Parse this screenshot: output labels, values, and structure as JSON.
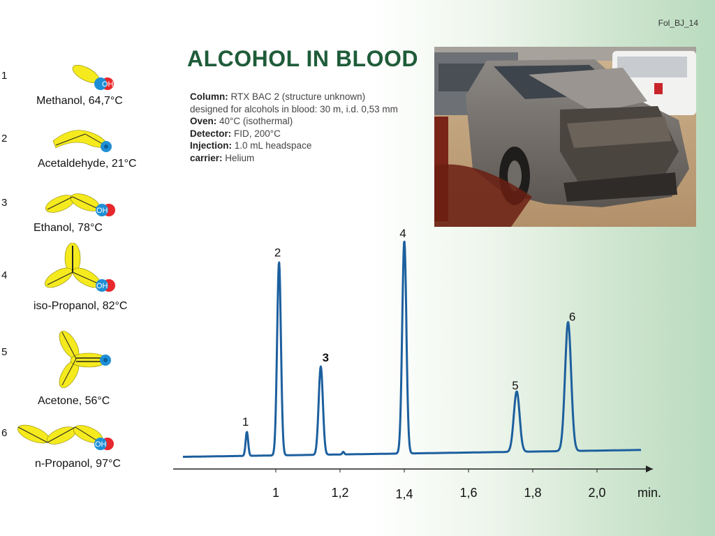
{
  "slide_ref": "Fol_BJ_14",
  "title": "ALCOHOL IN BLOOD",
  "conditions": {
    "column_label": "Column:",
    "column_value": " RTX BAC 2 (structure unknown)",
    "column_detail": "designed for alcohols in blood: 30 m, i.d. 0,53 mm",
    "oven_label": "Oven:",
    "oven_value": " 40°C (isothermal)",
    "detector_label": "Detector:",
    "detector_value": " FID, 200°C",
    "injection_label": "Injection:",
    "injection_value": " 1.0 mL headspace",
    "carrier_label": "carrier:",
    "carrier_value": " Helium"
  },
  "compounds": [
    {
      "number": "1",
      "name": "Methanol, 64,7°C"
    },
    {
      "number": "2",
      "name": "Acetaldehyde, 21°C"
    },
    {
      "number": "3",
      "name": "Ethanol, 78°C"
    },
    {
      "number": "4",
      "name": "iso-Propanol, 82°C"
    },
    {
      "number": "5",
      "name": "Acetone, 56°C"
    },
    {
      "number": "6",
      "name": "n-Propanol, 97°C"
    }
  ],
  "oh_label": "OH",
  "colors": {
    "title": "#1f5c3a",
    "trace": "#1c5f9e",
    "carbon_chain": "#f5ea1d",
    "oxygen": "#e8282c",
    "hydrogen": "#1e8fd6"
  },
  "chart_data": {
    "type": "line",
    "title": "",
    "xlabel": "min.",
    "ylabel": "",
    "x_ticks": [
      1.0,
      1.2,
      1.4,
      1.6,
      1.8,
      2.0
    ],
    "x_tick_labels": [
      "1",
      "1,2",
      "1,4",
      "1,6",
      "1,8",
      "2,0"
    ],
    "xlim": [
      0.7,
      2.15
    ],
    "ylim": [
      0,
      100
    ],
    "grid": false,
    "legend": "none",
    "baseline_start": 0.8,
    "baseline_end": 4.0,
    "peaks": [
      {
        "label": "1",
        "rt": 0.91,
        "height": 12
      },
      {
        "label": "2",
        "rt": 1.01,
        "height": 91
      },
      {
        "label": "3",
        "rt": 1.14,
        "height": 42
      },
      {
        "label": "4",
        "rt": 1.4,
        "height": 100
      },
      {
        "label": "5",
        "rt": 1.75,
        "height": 29
      },
      {
        "label": "6",
        "rt": 1.91,
        "height": 61
      }
    ]
  }
}
